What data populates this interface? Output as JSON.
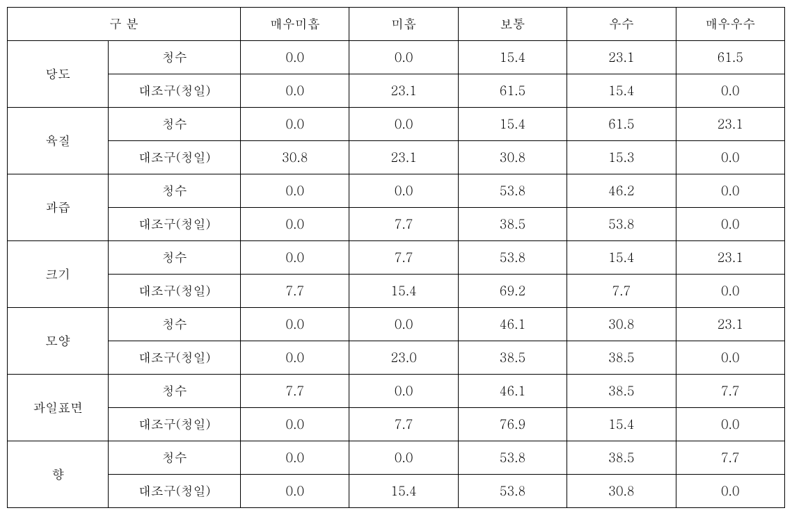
{
  "headers": {
    "category": "구    분",
    "col1": "매우미흡",
    "col2": "미흡",
    "col3": "보통",
    "col4": "우수",
    "col5": "매우우수"
  },
  "categories": [
    {
      "name": "당도",
      "rows": [
        {
          "type": "청수",
          "values": [
            "0.0",
            "0.0",
            "15.4",
            "23.1",
            "61.5"
          ]
        },
        {
          "type": "대조구(청일)",
          "values": [
            "0.0",
            "23.1",
            "61.5",
            "15.4",
            "0.0"
          ]
        }
      ]
    },
    {
      "name": "육질",
      "rows": [
        {
          "type": "청수",
          "values": [
            "0.0",
            "0.0",
            "15.4",
            "61.5",
            "23.1"
          ]
        },
        {
          "type": "대조구(청일)",
          "values": [
            "30.8",
            "23.1",
            "30.8",
            "15.3",
            "0.0"
          ]
        }
      ]
    },
    {
      "name": "과즙",
      "rows": [
        {
          "type": "청수",
          "values": [
            "0.0",
            "0.0",
            "53.8",
            "46.2",
            "0.0"
          ]
        },
        {
          "type": "대조구(청일)",
          "values": [
            "0.0",
            "7.7",
            "38.5",
            "53.8",
            "0.0"
          ]
        }
      ]
    },
    {
      "name": "크기",
      "rows": [
        {
          "type": "청수",
          "values": [
            "0.0",
            "7.7",
            "53.8",
            "15.4",
            "23.1"
          ]
        },
        {
          "type": "대조구(청일)",
          "values": [
            "7.7",
            "15.4",
            "69.2",
            "7.7",
            "0.0"
          ]
        }
      ]
    },
    {
      "name": "모양",
      "rows": [
        {
          "type": "청수",
          "values": [
            "0.0",
            "0.0",
            "46.1",
            "30.8",
            "23.1"
          ]
        },
        {
          "type": "대조구(청일)",
          "values": [
            "0.0",
            "23.0",
            "38.5",
            "38.5",
            "0.0"
          ]
        }
      ]
    },
    {
      "name": "과일표면",
      "rows": [
        {
          "type": "청수",
          "values": [
            "7.7",
            "0.0",
            "46.1",
            "38.5",
            "7.7"
          ]
        },
        {
          "type": "대조구(청일)",
          "values": [
            "0.0",
            "7.7",
            "76.9",
            "15.4",
            "0.0"
          ]
        }
      ]
    },
    {
      "name": "향",
      "rows": [
        {
          "type": "청수",
          "values": [
            "0.0",
            "0.0",
            "53.8",
            "38.5",
            "7.7"
          ]
        },
        {
          "type": "대조구(청일)",
          "values": [
            "0.0",
            "15.4",
            "53.8",
            "30.8",
            "0.0"
          ]
        }
      ]
    }
  ]
}
